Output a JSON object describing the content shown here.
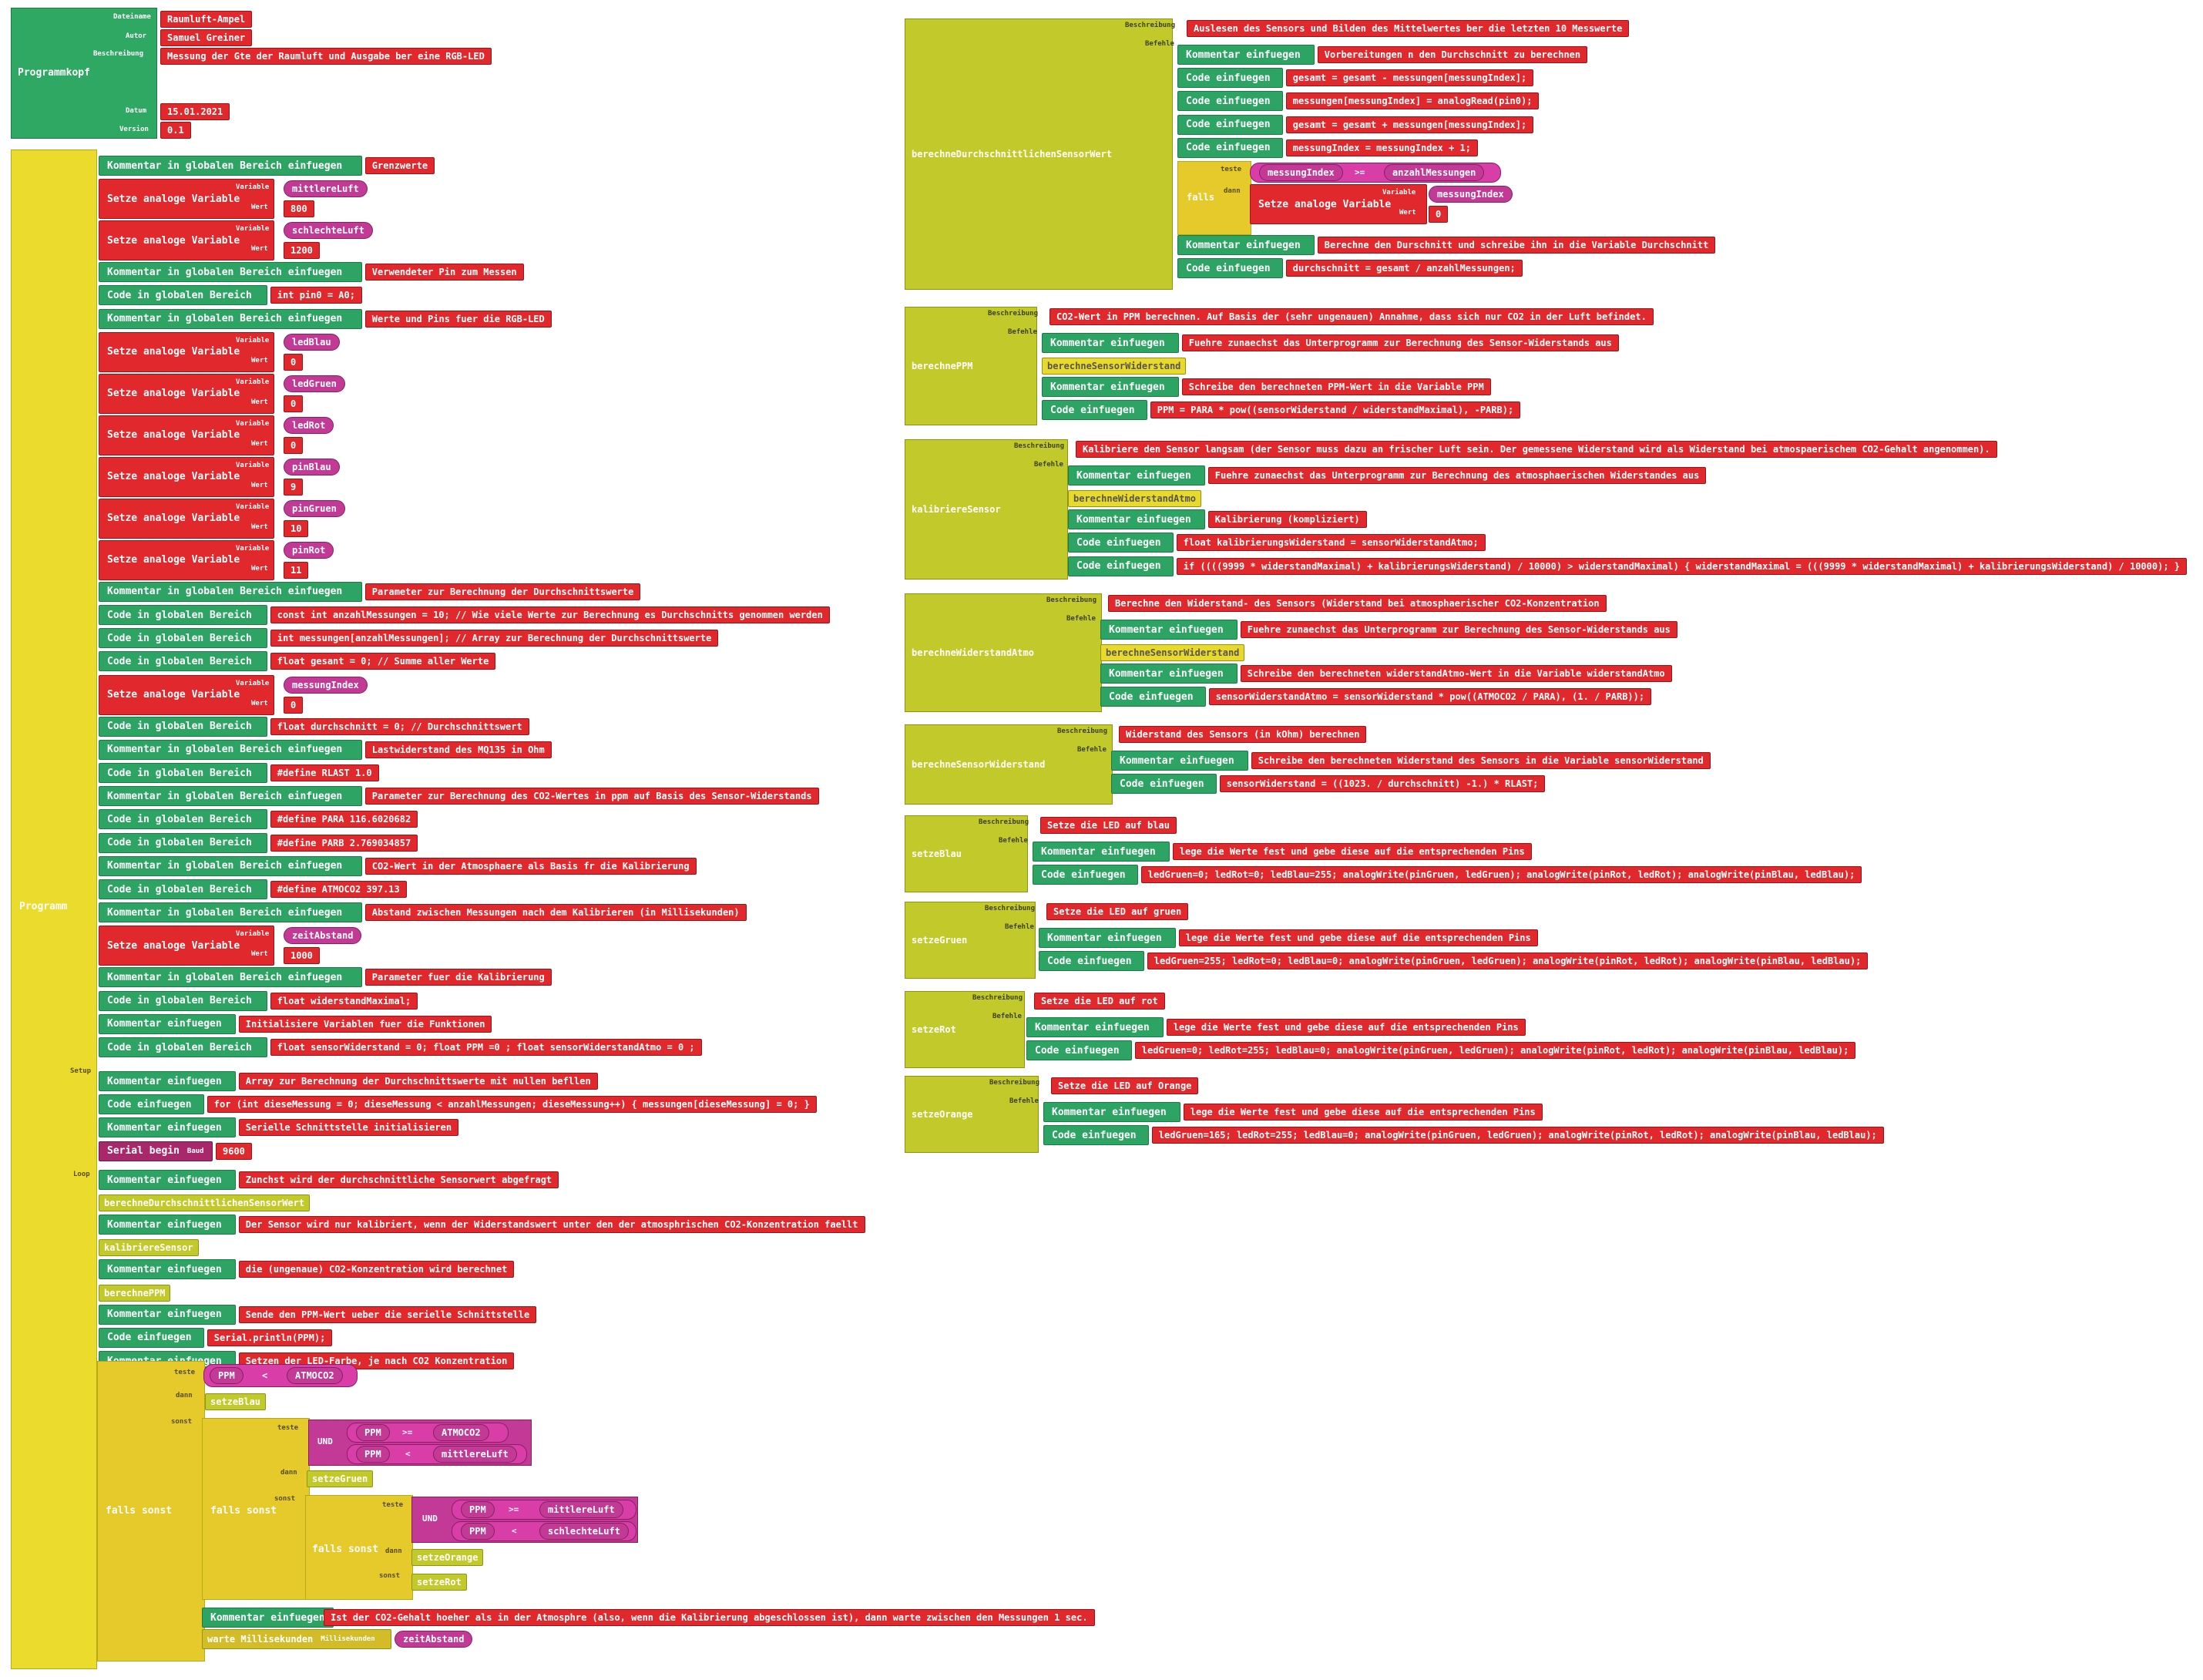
{
  "program_header": {
    "title": "Programmkopf",
    "labels": {
      "dateiname": "Dateiname",
      "autor": "Autor",
      "beschreibung": "Beschreibung",
      "datum": "Datum",
      "version": "Version"
    },
    "dateiname": "Raumluft-Ampel",
    "autor": "Samuel Greiner",
    "beschreibung": "Messung der Gte der Raumluft und Ausgabe ber eine RGB-LED",
    "datum": "15.01.2021",
    "version": "0.1"
  },
  "program": {
    "title": "Programm",
    "setup_label": "Setup",
    "loop_label": "Loop",
    "var_label": "Variable",
    "wert_label": "Wert",
    "blocks": [
      {
        "kind": "comment",
        "label": "Kommentar in globalen Bereich einfuegen",
        "value": "Grenzwerte"
      },
      {
        "kind": "var",
        "label": "Setze analoge Variable",
        "var": "mittlereLuft",
        "wert": "800"
      },
      {
        "kind": "var",
        "label": "Setze analoge Variable",
        "var": "schlechteLuft",
        "wert": "1200"
      },
      {
        "kind": "comment",
        "label": "Kommentar in globalen Bereich einfuegen",
        "value": "Verwendeter Pin zum Messen"
      },
      {
        "kind": "code",
        "label": "Code in globalen Bereich",
        "value": "int pin0 = A0;"
      },
      {
        "kind": "comment",
        "label": "Kommentar in globalen Bereich einfuegen",
        "value": "Werte und Pins fuer die RGB-LED"
      },
      {
        "kind": "var",
        "label": "Setze analoge Variable",
        "var": "ledBlau",
        "wert": "0"
      },
      {
        "kind": "var",
        "label": "Setze analoge Variable",
        "var": "ledGruen",
        "wert": "0"
      },
      {
        "kind": "var",
        "label": "Setze analoge Variable",
        "var": "ledRot",
        "wert": "0"
      },
      {
        "kind": "var",
        "label": "Setze analoge Variable",
        "var": "pinBlau",
        "wert": "9"
      },
      {
        "kind": "var",
        "label": "Setze analoge Variable",
        "var": "pinGruen",
        "wert": "10"
      },
      {
        "kind": "var",
        "label": "Setze analoge Variable",
        "var": "pinRot",
        "wert": "11"
      },
      {
        "kind": "comment",
        "label": "Kommentar in globalen Bereich einfuegen",
        "value": "Parameter zur Berechnung der Durchschnittswerte"
      },
      {
        "kind": "code",
        "label": "Code in globalen Bereich",
        "value": "const int anzahlMessungen = 10;  // Wie viele Werte zur Berechnung es Durchschnitts genommen werden"
      },
      {
        "kind": "code",
        "label": "Code in globalen Bereich",
        "value": "int messungen[anzahlMessungen]; // Array zur Berechnung der Durchschnittswerte"
      },
      {
        "kind": "code",
        "label": "Code in globalen Bereich",
        "value": "float gesant = 0; // Summe aller Werte"
      },
      {
        "kind": "var",
        "label": "Setze analoge Variable",
        "var": "messungIndex",
        "wert": "0"
      },
      {
        "kind": "code",
        "label": "Code in globalen Bereich",
        "value": "float durchschnitt = 0; // Durchschnittswert"
      },
      {
        "kind": "comment",
        "label": "Kommentar in globalen Bereich einfuegen",
        "value": "Lastwiderstand des MQ135 in Ohm"
      },
      {
        "kind": "code",
        "label": "Code in globalen Bereich",
        "value": "#define RLAST 1.0"
      },
      {
        "kind": "comment",
        "label": "Kommentar in globalen Bereich einfuegen",
        "value": "Parameter zur Berechnung des CO2-Wertes in ppm auf Basis des Sensor-Widerstands"
      },
      {
        "kind": "code",
        "label": "Code in globalen Bereich",
        "value": "#define PARA 116.6020682"
      },
      {
        "kind": "code",
        "label": "Code in globalen Bereich",
        "value": "#define PARB 2.769034857"
      },
      {
        "kind": "comment",
        "label": "Kommentar in globalen Bereich einfuegen",
        "value": "CO2-Wert in der Atmosphaere als Basis fr die Kalibrierung"
      },
      {
        "kind": "code",
        "label": "Code in globalen Bereich",
        "value": "#define ATMOCO2 397.13"
      },
      {
        "kind": "comment",
        "label": "Kommentar in globalen Bereich einfuegen",
        "value": "Abstand zwischen Messungen nach dem Kalibrieren (in Millisekunden)"
      },
      {
        "kind": "var",
        "label": "Setze analoge Variable",
        "var": "zeitAbstand",
        "wert": "1000"
      },
      {
        "kind": "comment",
        "label": "Kommentar in globalen Bereich einfuegen",
        "value": "Parameter fuer die Kalibrierung"
      },
      {
        "kind": "code",
        "label": "Code in globalen Bereich",
        "value": "float widerstandMaximal;"
      },
      {
        "kind": "comment",
        "label": "Kommentar einfuegen",
        "value": "Initialisiere Variablen fuer die Funktionen"
      },
      {
        "kind": "code",
        "label": "Code in globalen Bereich",
        "value": "float sensorWiderstand = 0; float PPM =0 ; float sensorWiderstandAtmo = 0 ;"
      }
    ],
    "setup": [
      {
        "kind": "comment",
        "label": "Kommentar einfuegen",
        "value": "Array zur Berechnung der Durchschnittswerte mit nullen befllen"
      },
      {
        "kind": "code",
        "label": "Code einfuegen",
        "value": "for (int dieseMessung = 0; dieseMessung < anzahlMessungen; dieseMessung++) {     messungen[dieseMessung] = 0;  }"
      },
      {
        "kind": "comment",
        "label": "Kommentar einfuegen",
        "value": "Serielle Schnittstelle initialisieren"
      },
      {
        "kind": "serial",
        "label": "Serial begin",
        "baud_label": "Baud",
        "value": "9600"
      }
    ],
    "loop": [
      {
        "kind": "comment",
        "label": "Kommentar einfuegen",
        "value": "Zunchst wird der durchschnittliche Sensorwert abgefragt"
      },
      {
        "kind": "call",
        "value": "berechneDurchschnittlichenSensorWert"
      },
      {
        "kind": "comment",
        "label": "Kommentar einfuegen",
        "value": "Der Sensor wird nur kalibriert, wenn der Widerstandswert unter den der atmosphrischen CO2-Konzentration faellt"
      },
      {
        "kind": "call",
        "value": "kalibriereSensor"
      },
      {
        "kind": "comment",
        "label": "Kommentar einfuegen",
        "value": "die (ungenaue) CO2-Konzentration wird berechnet"
      },
      {
        "kind": "call",
        "value": "berechnePPM"
      },
      {
        "kind": "comment",
        "label": "Kommentar einfuegen",
        "value": "Sende den PPM-Wert ueber die serielle Schnittstelle"
      },
      {
        "kind": "code",
        "label": "Code einfuegen",
        "value": "Serial.println(PPM);"
      },
      {
        "kind": "comment",
        "label": "Kommentar einfuegen",
        "value": "Setzen der LED-Farbe, je nach CO2 Konzentration"
      }
    ],
    "ifelse": {
      "label": "falls sonst",
      "teste": "teste",
      "dann": "dann",
      "sonst": "sonst",
      "und": "UND",
      "c1": {
        "a": "PPM",
        "op": "<",
        "b": "ATMOCO2"
      },
      "then1": "setzeBlau",
      "c2a": {
        "a": "PPM",
        "op": ">=",
        "b": "ATMOCO2"
      },
      "c2b": {
        "a": "PPM",
        "op": "<",
        "b": "mittlereLuft"
      },
      "then2": "setzeGruen",
      "c3a": {
        "a": "PPM",
        "op": ">=",
        "b": "mittlereLuft"
      },
      "c3b": {
        "a": "PPM",
        "op": "<",
        "b": "schlechteLuft"
      },
      "then3": "setzeOrange",
      "else3": "setzeRot"
    },
    "after": {
      "comment_label": "Kommentar einfuegen",
      "comment": "Ist der CO2-Gehalt hoeher als in der Atmosphre (also, wenn die Kalibrierung abgeschlossen ist), dann warte zwischen den Messungen 1 sec.",
      "wait_label": "warte Millisekunden",
      "ms_label": "Millisekunden",
      "ms_value": "zeitAbstand"
    }
  },
  "functions_common": {
    "beschreibung": "Beschreibung",
    "befehle": "Befehle",
    "teste": "teste",
    "dann": "dann",
    "falls": "falls"
  },
  "fn_avg": {
    "name": "berechneDurchschnittlichenSensorWert",
    "desc": "Auslesen des Sensors und Bilden des Mittelwertes ber die letzten 10 Messwerte",
    "rows": [
      {
        "label": "Kommentar einfuegen",
        "value": "Vorbereitungen n den Durchschnitt zu berechnen"
      },
      {
        "label": "Code einfuegen",
        "value": "gesamt = gesamt - messungen[messungIndex];"
      },
      {
        "label": "Code einfuegen",
        "value": "messungen[messungIndex] = analogRead(pin0);"
      },
      {
        "label": "Code einfuegen",
        "value": "gesamt = gesamt + messungen[messungIndex];"
      },
      {
        "label": "Code einfuegen",
        "value": "messungIndex = messungIndex + 1;"
      }
    ],
    "cond": {
      "a": "messungIndex",
      "op": ">=",
      "b": "anzahlMessungen"
    },
    "set_label": "Setze analoge Variable",
    "var_label": "Variable",
    "wert_label": "Wert",
    "var": "messungIndex",
    "wert": "0",
    "rows2": [
      {
        "label": "Kommentar einfuegen",
        "value": "Berechne den Durschnitt und schreibe ihn in die Variable Durchschnitt"
      },
      {
        "label": "Code einfuegen",
        "value": "durchschnitt = gesamt / anzahlMessungen;"
      }
    ]
  },
  "fn_ppm": {
    "name": "berechnePPM",
    "desc": "CO2-Wert in PPM berechnen. Auf Basis der (sehr ungenauen) Annahme, dass sich nur CO2 in der Luft befindet.",
    "rows": [
      {
        "label": "Kommentar einfuegen",
        "value": "Fuehre zunaechst das Unterprogramm zur Berechnung des Sensor-Widerstands aus"
      },
      {
        "call": "berechneSensorWiderstand"
      },
      {
        "label": "Kommentar einfuegen",
        "value": "Schreibe den berechneten PPM-Wert in die Variable PPM"
      },
      {
        "label": "Code einfuegen",
        "value": "PPM = PARA * pow((sensorWiderstand / widerstandMaximal), -PARB);"
      }
    ]
  },
  "fn_kal": {
    "name": "kalibriereSensor",
    "desc": "Kalibriere den Sensor langsam (der Sensor muss dazu an frischer Luft sein. Der gemessene Widerstand wird als Widerstand bei atmospaerischem CO2-Gehalt angenommen).",
    "rows": [
      {
        "label": "Kommentar einfuegen",
        "value": "Fuehre zunaechst das Unterprogramm zur Berechnung des atmosphaerischen Widerstandes aus"
      },
      {
        "call": "berechneWiderstandAtmo"
      },
      {
        "label": "Kommentar einfuegen",
        "value": "Kalibrierung (kompliziert)"
      },
      {
        "label": "Code einfuegen",
        "value": "float kalibrierungsWiderstand = sensorWiderstandAtmo;"
      },
      {
        "label": "Code einfuegen",
        "value": "if ((((9999 * widerstandMaximal) + kalibrierungsWiderstand) / 10000) > widerstandMaximal) {      widerstandMaximal = (((9999 * widerstandMaximal) + kalibrierungsWiderstand) / 10000);   }"
      }
    ]
  },
  "fn_atmo": {
    "name": "berechneWiderstandAtmo",
    "desc": "Berechne den Widerstand- des Sensors (Widerstand bei atmosphaerischer CO2-Konzentration",
    "rows": [
      {
        "label": "Kommentar einfuegen",
        "value": "Fuehre zunaechst das Unterprogramm zur Berechnung des Sensor-Widerstands aus"
      },
      {
        "call": "berechneSensorWiderstand"
      },
      {
        "label": "Kommentar einfuegen",
        "value": "Schreibe den berechneten widerstandAtmo-Wert in die Variable widerstandAtmo"
      },
      {
        "label": "Code einfuegen",
        "value": "sensorWiderstandAtmo = sensorWiderstand * pow((ATMOCO2 / PARA), (1. / PARB));"
      }
    ]
  },
  "fn_sens": {
    "name": "berechneSensorWiderstand",
    "desc": "Widerstand des Sensors (in kOhm) berechnen",
    "rows": [
      {
        "label": "Kommentar einfuegen",
        "value": "Schreibe den berechneten Widerstand des Sensors in die Variable sensorWiderstand"
      },
      {
        "label": "Code einfuegen",
        "value": "sensorWiderstand = ((1023. / durchschnitt) -1.) * RLAST;"
      }
    ]
  },
  "fn_blau": {
    "name": "setzeBlau",
    "desc": "Setze die LED auf blau",
    "rows": [
      {
        "label": "Kommentar einfuegen",
        "value": "lege die Werte fest und gebe diese auf die entsprechenden Pins"
      },
      {
        "label": "Code einfuegen",
        "value": "ledGruen=0; ledRot=0; ledBlau=255; analogWrite(pinGruen, ledGruen); analogWrite(pinRot, ledRot); analogWrite(pinBlau, ledBlau);"
      }
    ]
  },
  "fn_gruen": {
    "name": "setzeGruen",
    "desc": "Setze die LED auf gruen",
    "rows": [
      {
        "label": "Kommentar einfuegen",
        "value": "lege die Werte fest und gebe diese auf die entsprechenden Pins"
      },
      {
        "label": "Code einfuegen",
        "value": "ledGruen=255; ledRot=0; ledBlau=0; analogWrite(pinGruen, ledGruen); analogWrite(pinRot, ledRot); analogWrite(pinBlau, ledBlau);"
      }
    ]
  },
  "fn_rot": {
    "name": "setzeRot",
    "desc": "Setze die LED auf rot",
    "rows": [
      {
        "label": "Kommentar einfuegen",
        "value": "lege die Werte fest und gebe diese auf die entsprechenden Pins"
      },
      {
        "label": "Code einfuegen",
        "value": "ledGruen=0; ledRot=255; ledBlau=0; analogWrite(pinGruen, ledGruen); analogWrite(pinRot, ledRot); analogWrite(pinBlau, ledBlau);"
      }
    ]
  },
  "fn_orange": {
    "name": "setzeOrange",
    "desc": "Setze die LED auf Orange",
    "rows": [
      {
        "label": "Kommentar einfuegen",
        "value": "lege die Werte fest und gebe diese auf die entsprechenden Pins"
      },
      {
        "label": "Code einfuegen",
        "value": "ledGruen=165; ledRot=255; ledBlau=0; analogWrite(pinGruen, ledGruen); analogWrite(pinRot, ledRot); analogWrite(pinBlau, ledBlau);"
      }
    ]
  }
}
